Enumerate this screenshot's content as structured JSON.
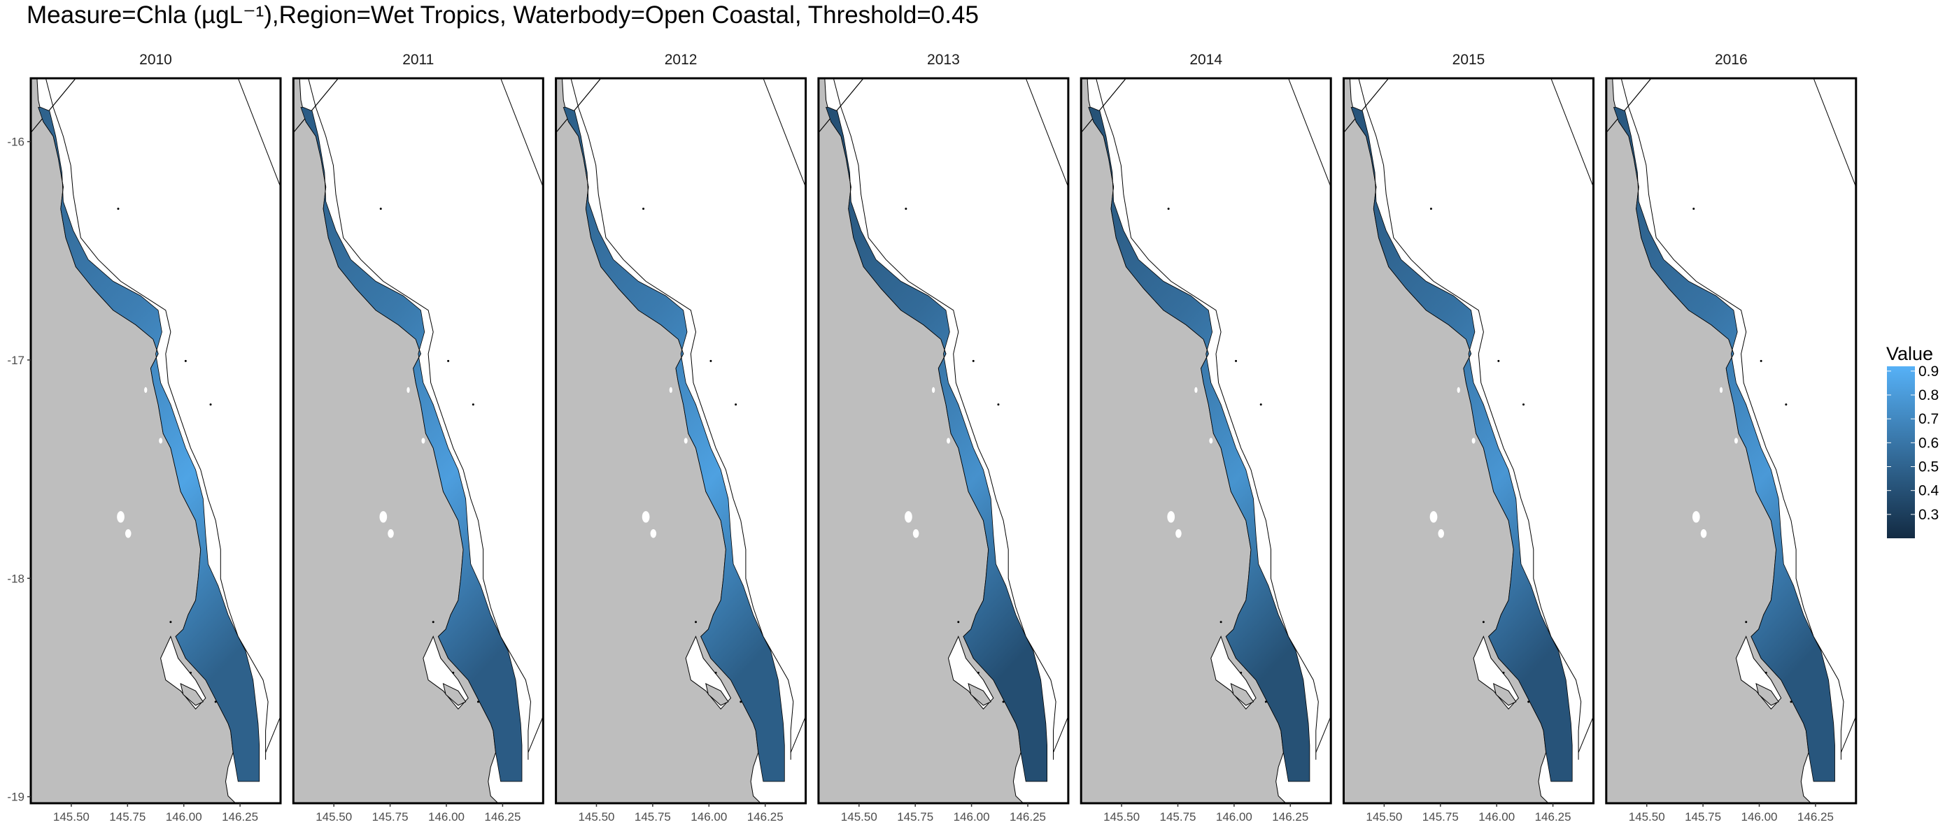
{
  "title": "Measure=Chla (µgL⁻¹),Region=Wet Tropics, Waterbody=Open Coastal, Threshold=0.45",
  "map_data": {
    "type": "faceted-map",
    "facets": [
      "2010",
      "2011",
      "2012",
      "2013",
      "2014",
      "2015",
      "2016"
    ],
    "facet_shading": [
      0.62,
      0.58,
      0.6,
      0.48,
      0.5,
      0.52,
      0.54
    ],
    "x_ticks": [
      "145.50",
      "145.75",
      "146.00",
      "146.25"
    ],
    "x_tick_values": [
      145.5,
      145.75,
      146.0,
      146.25
    ],
    "y_ticks": [
      "-16",
      "-17",
      "-18",
      "-19"
    ],
    "y_tick_values": [
      -16,
      -17,
      -18,
      -19
    ],
    "xlim": [
      145.32,
      146.43
    ],
    "ylim": [
      -19.03,
      -15.71
    ],
    "colors": {
      "land": "#bebebe",
      "sea": "#ffffff",
      "high": "#56b1f7",
      "low": "#132b43",
      "outline": "#000000"
    }
  },
  "legend": {
    "title": "Value",
    "labels": [
      "0.9",
      "0.8",
      "0.7",
      "0.6",
      "0.5",
      "0.4",
      "0.3"
    ],
    "values": [
      0.9,
      0.8,
      0.7,
      0.6,
      0.5,
      0.4,
      0.3
    ],
    "range": [
      0.2,
      0.92
    ]
  }
}
